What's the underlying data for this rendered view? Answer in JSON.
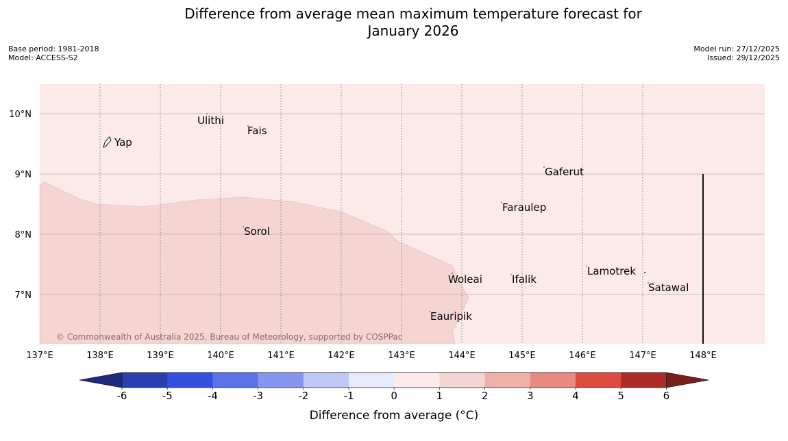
{
  "title": {
    "line1": "Difference from average mean maximum temperature forecast for",
    "line2": "January 2026"
  },
  "meta_left": {
    "base_period": "Base period: 1981-2018",
    "model": "Model: ACCESS-S2"
  },
  "meta_right": {
    "model_run": "Model run: 27/12/2025",
    "issued": "Issued: 29/12/2025"
  },
  "map": {
    "longitude_ticks": [
      "137°E",
      "138°E",
      "139°E",
      "140°E",
      "141°E",
      "142°E",
      "143°E",
      "144°E",
      "145°E",
      "146°E",
      "147°E",
      "148°E"
    ],
    "latitude_ticks": [
      "10°N",
      "9°N",
      "8°N",
      "7°N"
    ],
    "places": [
      {
        "name": "Yap"
      },
      {
        "name": "Ulithi"
      },
      {
        "name": "Fais"
      },
      {
        "name": "Gaferut"
      },
      {
        "name": "Faraulep"
      },
      {
        "name": "Sorol"
      },
      {
        "name": "Lamotrek"
      },
      {
        "name": "Woleai"
      },
      {
        "name": "Ifalik"
      },
      {
        "name": "Satawal"
      },
      {
        "name": "Eauripik"
      }
    ],
    "copyright": "© Commonwealth of Australia 2025, Bureau of Meteorology, supported by COSPPac",
    "fill_colors": {
      "zone_0_to_1": "#fbeae8",
      "zone_1_to_2": "#f5d5d2"
    }
  },
  "colorbar": {
    "title": "Difference from average (°C)",
    "tick_labels": [
      "-6",
      "-5",
      "-4",
      "-3",
      "-2",
      "-1",
      "0",
      "1",
      "2",
      "3",
      "4",
      "5",
      "6"
    ],
    "colors": [
      "#2b3eb0",
      "#3350e0",
      "#5a74e8",
      "#8696ee",
      "#c0c8f6",
      "#e8ebfc",
      "#fcebea",
      "#f5d5d2",
      "#eeb0aa",
      "#e88a80",
      "#dc4a40",
      "#ac2b26"
    ],
    "under_color": "#1e2a80",
    "over_color": "#7a1e1a"
  }
}
